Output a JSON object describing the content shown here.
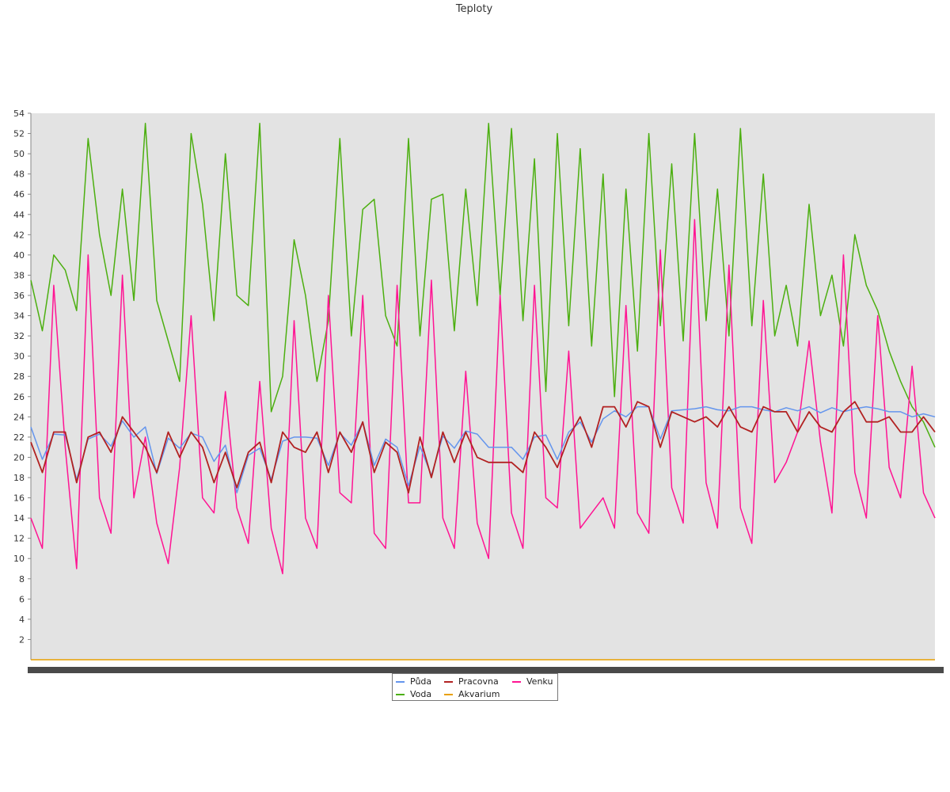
{
  "chart_data": {
    "type": "line",
    "title": "Teploty",
    "xlabel": "",
    "ylabel": "",
    "ylim": [
      0,
      54
    ],
    "yticks": [
      2,
      4,
      6,
      8,
      10,
      12,
      14,
      16,
      18,
      20,
      22,
      24,
      26,
      28,
      30,
      32,
      34,
      36,
      38,
      40,
      42,
      44,
      46,
      48,
      50,
      52,
      54
    ],
    "grid": false,
    "legend": "bottom-center",
    "series": [
      {
        "name": "Půda",
        "color": "#6495ed",
        "values": [
          23.0,
          19.8,
          22.3,
          22.2,
          17.8,
          21.8,
          22.3,
          21.1,
          23.6,
          22.0,
          23.0,
          18.4,
          21.9,
          20.9,
          22.4,
          22.0,
          19.6,
          21.2,
          16.5,
          20.2,
          20.9,
          17.8,
          21.6,
          22.0,
          22.0,
          21.9,
          19.2,
          22.4,
          21.2,
          23.5,
          19.2,
          21.8,
          21.0,
          17.2,
          21.1,
          18.2,
          22.1,
          20.9,
          22.6,
          22.3,
          21.0,
          21.0,
          21.0,
          19.8,
          22.0,
          22.2,
          19.8,
          22.5,
          23.5,
          21.5,
          23.8,
          24.6,
          24.0,
          25.0,
          25.0,
          21.8,
          24.6,
          24.7,
          24.8,
          25.0,
          24.7,
          24.6,
          25.0,
          25.0,
          24.7,
          24.5,
          24.9,
          24.6,
          25.0,
          24.4,
          24.9,
          24.5,
          24.8,
          25.0,
          24.8,
          24.5,
          24.5,
          24.0,
          24.3,
          24.0
        ]
      },
      {
        "name": "Voda",
        "color": "#4caf10",
        "values": [
          37.5,
          32.5,
          40.0,
          38.5,
          34.5,
          51.5,
          42.0,
          36.0,
          46.5,
          35.5,
          53.0,
          35.5,
          31.5,
          27.5,
          52.0,
          45.0,
          33.5,
          50.0,
          36.0,
          35.0,
          53.0,
          24.5,
          28.0,
          41.5,
          36.0,
          27.5,
          33.5,
          51.5,
          32.0,
          44.5,
          45.5,
          34.0,
          31.0,
          51.5,
          32.0,
          45.5,
          46.0,
          32.5,
          46.5,
          35.0,
          53.0,
          36.0,
          52.5,
          33.5,
          49.5,
          26.5,
          52.0,
          33.0,
          50.5,
          31.0,
          48.0,
          26.0,
          46.5,
          30.5,
          52.0,
          33.0,
          49.0,
          31.5,
          52.0,
          33.5,
          46.5,
          32.0,
          52.5,
          33.0,
          48.0,
          32.0,
          37.0,
          31.0,
          45.0,
          34.0,
          38.0,
          31.0,
          42.0,
          37.0,
          34.5,
          30.5,
          27.5,
          25.0,
          23.5,
          21.0
        ]
      },
      {
        "name": "Pracovna",
        "color": "#b22222",
        "values": [
          21.5,
          18.5,
          22.5,
          22.5,
          17.5,
          22.0,
          22.5,
          20.5,
          24.0,
          22.5,
          21.0,
          18.5,
          22.5,
          20.0,
          22.5,
          21.0,
          17.5,
          20.5,
          17.0,
          20.5,
          21.5,
          17.5,
          22.5,
          21.0,
          20.5,
          22.5,
          18.5,
          22.5,
          20.5,
          23.5,
          18.5,
          21.5,
          20.5,
          16.5,
          22.0,
          18.0,
          22.5,
          19.5,
          22.5,
          20.0,
          19.5,
          19.5,
          19.5,
          18.5,
          22.5,
          21.0,
          19.0,
          22.0,
          24.0,
          21.0,
          25.0,
          25.0,
          23.0,
          25.5,
          25.0,
          21.0,
          24.5,
          24.0,
          23.5,
          24.0,
          23.0,
          25.0,
          23.0,
          22.5,
          25.0,
          24.5,
          24.5,
          22.5,
          24.5,
          23.0,
          22.5,
          24.5,
          25.5,
          23.5,
          23.5,
          24.0,
          22.5,
          22.5,
          24.0,
          22.5
        ]
      },
      {
        "name": "Akvarium",
        "color": "#e8a000",
        "values": [
          0.0,
          0.0,
          0.0,
          0.0,
          0.0,
          0.0,
          0.0,
          0.0,
          0.0,
          0.0,
          0.0,
          0.0,
          0.0,
          0.0,
          0.0,
          0.0,
          0.0,
          0.0,
          0.0,
          0.0,
          0.0,
          0.0,
          0.0,
          0.0,
          0.0,
          0.0,
          0.0,
          0.0,
          0.0,
          0.0,
          0.0,
          0.0,
          0.0,
          0.0,
          0.0,
          0.0,
          0.0,
          0.0,
          0.0,
          0.0,
          0.0,
          0.0,
          0.0,
          0.0,
          0.0,
          0.0,
          0.0,
          0.0,
          0.0,
          0.0,
          0.0,
          0.0,
          0.0,
          0.0,
          0.0,
          0.0,
          0.0,
          0.0,
          0.0,
          0.0,
          0.0,
          0.0,
          0.0,
          0.0,
          0.0,
          0.0,
          0.0,
          0.0,
          0.0,
          0.0,
          0.0,
          0.0,
          0.0,
          0.0,
          0.0,
          0.0,
          0.0,
          0.0,
          0.0,
          0.0
        ]
      },
      {
        "name": "Venku",
        "color": "#ff1493",
        "values": [
          14.0,
          11.0,
          37.0,
          21.0,
          9.0,
          40.0,
          16.0,
          12.5,
          38.0,
          16.0,
          22.0,
          13.5,
          9.5,
          19.0,
          34.0,
          16.0,
          14.5,
          26.5,
          15.0,
          11.5,
          27.5,
          13.0,
          8.5,
          33.5,
          14.0,
          11.0,
          36.0,
          16.5,
          15.5,
          36.0,
          12.5,
          11.0,
          37.0,
          15.5,
          15.5,
          37.5,
          14.0,
          11.0,
          28.5,
          13.5,
          10.0,
          36.0,
          14.5,
          11.0,
          37.0,
          16.0,
          15.0,
          30.5,
          13.0,
          14.5,
          16.0,
          13.0,
          35.0,
          14.5,
          12.5,
          40.5,
          17.0,
          13.5,
          43.5,
          17.5,
          13.0,
          39.0,
          15.0,
          11.5,
          35.5,
          17.5,
          19.5,
          22.5,
          31.5,
          21.5,
          14.5,
          40.0,
          18.5,
          14.0,
          34.0,
          19.0,
          16.0,
          29.0,
          16.5,
          14.0
        ]
      }
    ]
  }
}
